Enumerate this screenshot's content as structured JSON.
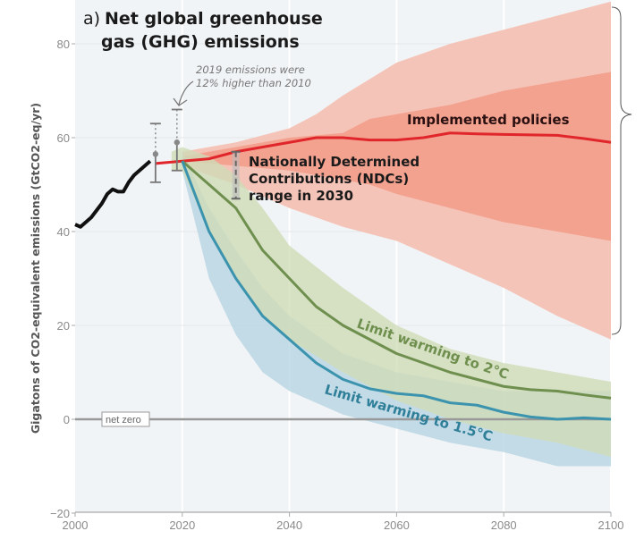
{
  "chart_data": {
    "type": "line",
    "panel_label": "a)",
    "title": "Net global greenhouse gas (GHG) emissions",
    "title_lines": [
      "Net global greenhouse",
      "gas (GHG) emissions"
    ],
    "xlabel": "",
    "ylabel": "Gigatons of CO2-equivalent emissions (GtCO2-eq/yr)",
    "xlim": [
      2000,
      2100
    ],
    "ylim": [
      -20,
      89
    ],
    "xticks": [
      2000,
      2020,
      2040,
      2060,
      2080,
      2100
    ],
    "yticks": [
      -20,
      0,
      20,
      40,
      60,
      80
    ],
    "ytick_labels": [
      "−20",
      "0",
      "20",
      "40",
      "60",
      "80"
    ],
    "grid": true,
    "colors": {
      "historical": "#111111",
      "implemented": "#e0262b",
      "implemented_band_outer": "#f5c4b8",
      "implemented_band_inner": "#f29c88",
      "warming_2c": "#6f8f4e",
      "warming_2c_band": "#cfdcb8",
      "warming_15c": "#3b93ae",
      "warming_15c_band": "#b3d3e2",
      "plot_bg": "#f1f4f6"
    },
    "series": [
      {
        "key": "historical",
        "x": [
          2000,
          2001,
          2002,
          2003,
          2004,
          2005,
          2006,
          2007,
          2008,
          2009,
          2010,
          2011,
          2012,
          2013,
          2014
        ],
        "y": [
          41.5,
          41,
          42,
          43,
          44.5,
          46,
          48,
          49,
          48.5,
          48.5,
          50.5,
          52,
          53,
          54,
          55
        ]
      },
      {
        "key": "implemented",
        "name": "Implemented policies",
        "x": [
          2015,
          2020,
          2025,
          2030,
          2035,
          2040,
          2045,
          2050,
          2055,
          2060,
          2065,
          2070,
          2075,
          2080,
          2085,
          2090,
          2095,
          2100
        ],
        "y": [
          54.5,
          55,
          55.5,
          57,
          58,
          59,
          60,
          60,
          59.5,
          59.5,
          60,
          61,
          60.8,
          60.7,
          60.6,
          60.5,
          59.8,
          59
        ]
      },
      {
        "key": "warming_2c",
        "name": "Limit warming to 2°C",
        "x": [
          2020,
          2025,
          2030,
          2035,
          2040,
          2045,
          2050,
          2055,
          2060,
          2065,
          2070,
          2075,
          2080,
          2085,
          2090,
          2095,
          2100
        ],
        "y": [
          55,
          50,
          45,
          36,
          30,
          24,
          20,
          17,
          14,
          12,
          10,
          8.5,
          7,
          6.3,
          6,
          5.2,
          4.5
        ]
      },
      {
        "key": "warming_15c",
        "name": "Limit warming to 1.5°C",
        "x": [
          2020,
          2025,
          2030,
          2035,
          2040,
          2045,
          2050,
          2055,
          2060,
          2065,
          2070,
          2075,
          2080,
          2085,
          2090,
          2095,
          2100
        ],
        "y": [
          55,
          40,
          30,
          22,
          17,
          12,
          8.5,
          6.5,
          5.5,
          5,
          3.5,
          3,
          1.5,
          0.5,
          0,
          0.3,
          0
        ]
      }
    ],
    "bands": [
      {
        "key": "implemented_outer",
        "x": [
          2020,
          2030,
          2040,
          2045,
          2050,
          2060,
          2070,
          2080,
          2090,
          2100
        ],
        "upper": [
          57,
          59,
          62,
          65,
          69,
          76,
          80,
          83,
          86,
          89
        ],
        "lower": [
          54,
          50,
          45,
          43,
          41,
          38,
          33,
          28,
          22,
          17
        ]
      },
      {
        "key": "implemented_inner",
        "x": [
          2020,
          2030,
          2040,
          2050,
          2055,
          2060,
          2070,
          2080,
          2090,
          2100
        ],
        "upper": [
          56,
          58,
          60,
          61,
          64,
          65,
          67,
          70,
          72,
          74
        ],
        "lower": [
          55,
          54,
          53,
          51,
          50,
          48,
          45,
          42,
          40,
          38
        ]
      },
      {
        "key": "warming_2c",
        "x": [
          2018,
          2020,
          2025,
          2030,
          2035,
          2040,
          2050,
          2060,
          2070,
          2080,
          2090,
          2100
        ],
        "upper": [
          57,
          58,
          56,
          52,
          45,
          37,
          28,
          20,
          15,
          12,
          10,
          8
        ],
        "lower": [
          53,
          53,
          40,
          30,
          22,
          17,
          10,
          4,
          0,
          -3,
          -5,
          -8
        ]
      },
      {
        "key": "warming_15c",
        "x": [
          2020,
          2025,
          2030,
          2035,
          2040,
          2050,
          2060,
          2070,
          2080,
          2090,
          2100
        ],
        "upper": [
          57,
          45,
          36,
          28,
          22,
          14,
          10,
          8,
          6,
          6,
          6
        ],
        "lower": [
          53,
          30,
          18,
          10,
          6,
          1,
          -2,
          -5,
          -7,
          -10,
          -10
        ]
      }
    ],
    "error_bars": [
      {
        "year": 2015,
        "central": 56.5,
        "low": 50.5,
        "high": 63
      },
      {
        "year": 2019,
        "central": 59,
        "low": 53,
        "high": 66
      },
      {
        "year": 2030,
        "low": 47,
        "high": 57,
        "style": "dashed"
      }
    ],
    "annotations": {
      "emissions_2019": [
        "2019 emissions were",
        "12% higher than 2010"
      ],
      "ndc": [
        "Nationally Determined",
        "Contributions (NDCs)",
        "range in 2030"
      ],
      "net_zero": "net zero",
      "implemented": "Implemented policies",
      "warming_2c": "Limit warming to 2°C",
      "warming_15c": "Limit warming to 1.5°C"
    }
  }
}
